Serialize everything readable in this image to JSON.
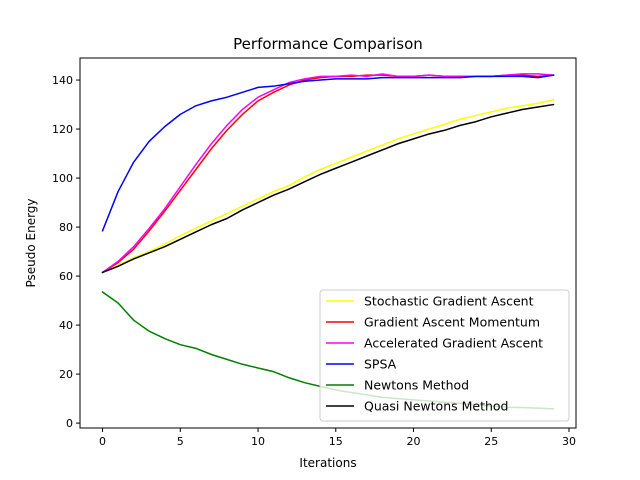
{
  "chart_data": {
    "type": "line",
    "title": "Performance Comparison",
    "xlabel": "Iterations",
    "ylabel": "Pseudo Energy",
    "xlim": [
      -1.45,
      30.45
    ],
    "ylim": [
      -2,
      149
    ],
    "xticks": [
      0,
      5,
      10,
      15,
      20,
      25,
      30
    ],
    "yticks": [
      0,
      20,
      40,
      60,
      80,
      100,
      120,
      140
    ],
    "grid": false,
    "legend_position": "lower-right",
    "x": [
      0,
      1,
      2,
      3,
      4,
      5,
      6,
      7,
      8,
      9,
      10,
      11,
      12,
      13,
      14,
      15,
      16,
      17,
      18,
      19,
      20,
      21,
      22,
      23,
      24,
      25,
      26,
      27,
      28,
      29
    ],
    "series": [
      {
        "name": "Stochastic Gradient Ascent",
        "color": "#ffff00",
        "values": [
          61.5,
          64.5,
          67.5,
          70,
          73,
          76.5,
          79.5,
          82.5,
          85.5,
          88.5,
          91.5,
          94.5,
          97,
          100.5,
          103.5,
          106,
          108.5,
          111,
          113.5,
          116,
          118,
          120,
          122,
          124,
          125.5,
          127,
          128.5,
          129.5,
          130.5,
          132
        ]
      },
      {
        "name": "Gradient Ascent Momentum",
        "color": "#ff0000",
        "values": [
          61.5,
          65.5,
          71,
          78.5,
          86.5,
          95,
          103.5,
          112,
          119.5,
          126,
          131.5,
          135,
          138,
          140,
          141,
          141.5,
          141.5,
          142,
          142,
          141.5,
          141.5,
          142,
          141.5,
          141.5,
          141.5,
          141.5,
          142,
          142,
          141.5,
          142
        ]
      },
      {
        "name": "Accelerated Gradient Ascent",
        "color": "#ff00ff",
        "values": [
          61.5,
          66,
          72,
          79.5,
          87.5,
          96.5,
          105.5,
          114,
          121.5,
          128,
          133,
          136,
          139,
          140.5,
          141.5,
          141.5,
          142,
          141.5,
          142.5,
          141.5,
          141.5,
          142,
          141.5,
          141.5,
          141.5,
          141.5,
          142,
          142.5,
          142.5,
          142
        ]
      },
      {
        "name": "SPSA",
        "color": "#0000ff",
        "values": [
          78.5,
          94.5,
          106.5,
          115,
          121,
          126,
          129.5,
          131.5,
          133,
          135,
          137,
          137.5,
          138.5,
          139.5,
          140,
          140.5,
          140.5,
          140.5,
          141,
          141,
          141,
          141,
          141,
          141,
          141.5,
          141.5,
          141.5,
          141.5,
          141,
          142
        ]
      },
      {
        "name": "Newtons Method",
        "color": "#008000",
        "values": [
          53.5,
          49,
          42,
          37.5,
          34.5,
          32,
          30.5,
          28,
          26,
          24,
          22.5,
          21,
          18.5,
          16.5,
          15,
          13.5,
          12.5,
          11.5,
          10.5,
          10,
          9.5,
          9,
          8.5,
          8,
          7.5,
          7,
          6.5,
          6.3,
          6.1,
          5.8
        ]
      },
      {
        "name": "Quasi Newtons Method",
        "color": "#000000",
        "values": [
          61.5,
          64,
          67,
          69.5,
          72,
          75,
          78,
          81,
          83.5,
          87,
          90,
          93,
          95.5,
          98.5,
          101.5,
          104,
          106.5,
          109,
          111.5,
          114,
          116,
          118,
          119.5,
          121.5,
          123,
          125,
          126.5,
          128,
          129,
          130
        ]
      }
    ]
  }
}
